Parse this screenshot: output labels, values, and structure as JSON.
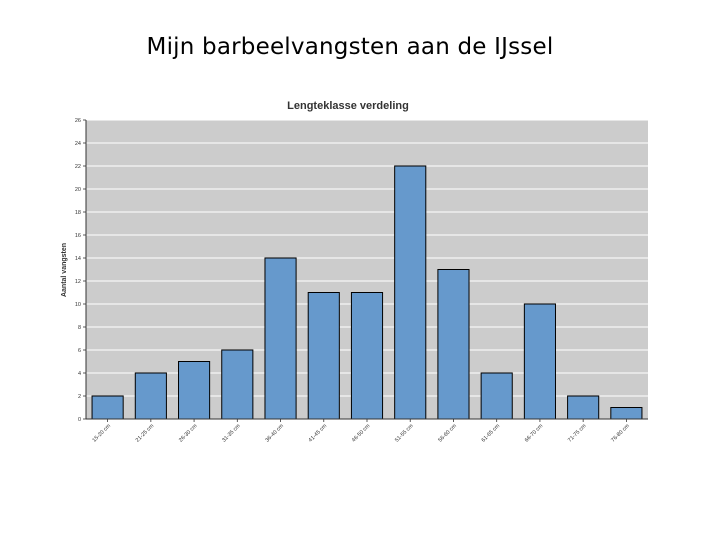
{
  "slide": {
    "title": "Mijn barbeelvangsten aan de IJssel"
  },
  "chart_data": {
    "type": "bar",
    "title": "Lengteklasse verdeling",
    "xlabel": "",
    "ylabel": "Aantal vangsten",
    "categories": [
      "15-20 cm",
      "21-25 cm",
      "26-30 cm",
      "31-35 cm",
      "36-40 cm",
      "41-45 cm",
      "46-50 cm",
      "51-55 cm",
      "56-60 cm",
      "61-65 cm",
      "66-70 cm",
      "71-75 cm",
      "76-80 cm"
    ],
    "values": [
      2,
      4,
      5,
      6,
      14,
      11,
      11,
      22,
      13,
      4,
      10,
      2,
      1
    ],
    "ylim": [
      0,
      26
    ],
    "yticks": [
      0,
      2,
      4,
      6,
      8,
      10,
      12,
      14,
      16,
      18,
      20,
      22,
      24,
      26
    ],
    "grid": true,
    "colors": {
      "bar": "#6699cc",
      "bar_stroke": "#000000",
      "plot_bg": "#cccccc",
      "grid": "#ffffff"
    }
  }
}
